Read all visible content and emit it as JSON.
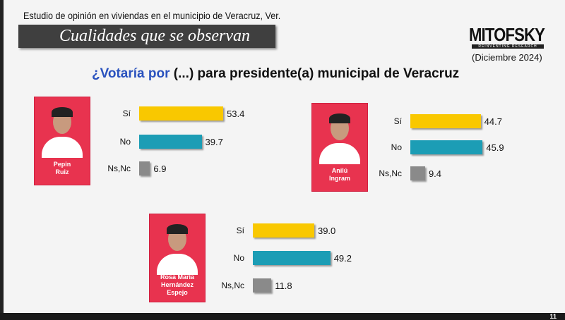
{
  "header": {
    "subtitle": "Estudio de opinión en viviendas en el municipio de Veracruz, Ver.",
    "banner": "Cualidades que se observan",
    "logo": "MITOFSKY",
    "logo_tagline": "REINVENTING RESEARCH",
    "date": "(Diciembre 2024)"
  },
  "question": {
    "highlight": "¿Votaría por",
    "rest": " (...) para presidente(a) municipal de Veracruz"
  },
  "page_number": "11",
  "colors": {
    "si": "#f9c800",
    "no": "#1c9db5",
    "nsnc": "#8a8a8a",
    "card": "#e8334f"
  },
  "chart_data": {
    "type": "bar",
    "title": "¿Votaría por (...) para presidente(a) municipal de Veracruz",
    "categories": [
      "Sí",
      "No",
      "Ns,Nc"
    ],
    "series": [
      {
        "name": "Pepin Ruiz",
        "name_lines": [
          "Pepin",
          "Ruiz"
        ],
        "values": [
          53.4,
          39.7,
          6.9
        ],
        "labels": [
          "53.4",
          "39.7",
          "6.9"
        ]
      },
      {
        "name": "Anilú Ingram",
        "name_lines": [
          "Anilú",
          "Ingram"
        ],
        "values": [
          44.7,
          45.9,
          9.4
        ],
        "labels": [
          "44.7",
          "45.9",
          "9.4"
        ]
      },
      {
        "name": "Rosa María Hernández Espejo",
        "name_lines": [
          "Rosa María",
          "Hernández",
          "Espejo"
        ],
        "values": [
          39.0,
          49.2,
          11.8
        ],
        "labels": [
          "39.0",
          "49.2",
          "11.8"
        ]
      }
    ]
  }
}
